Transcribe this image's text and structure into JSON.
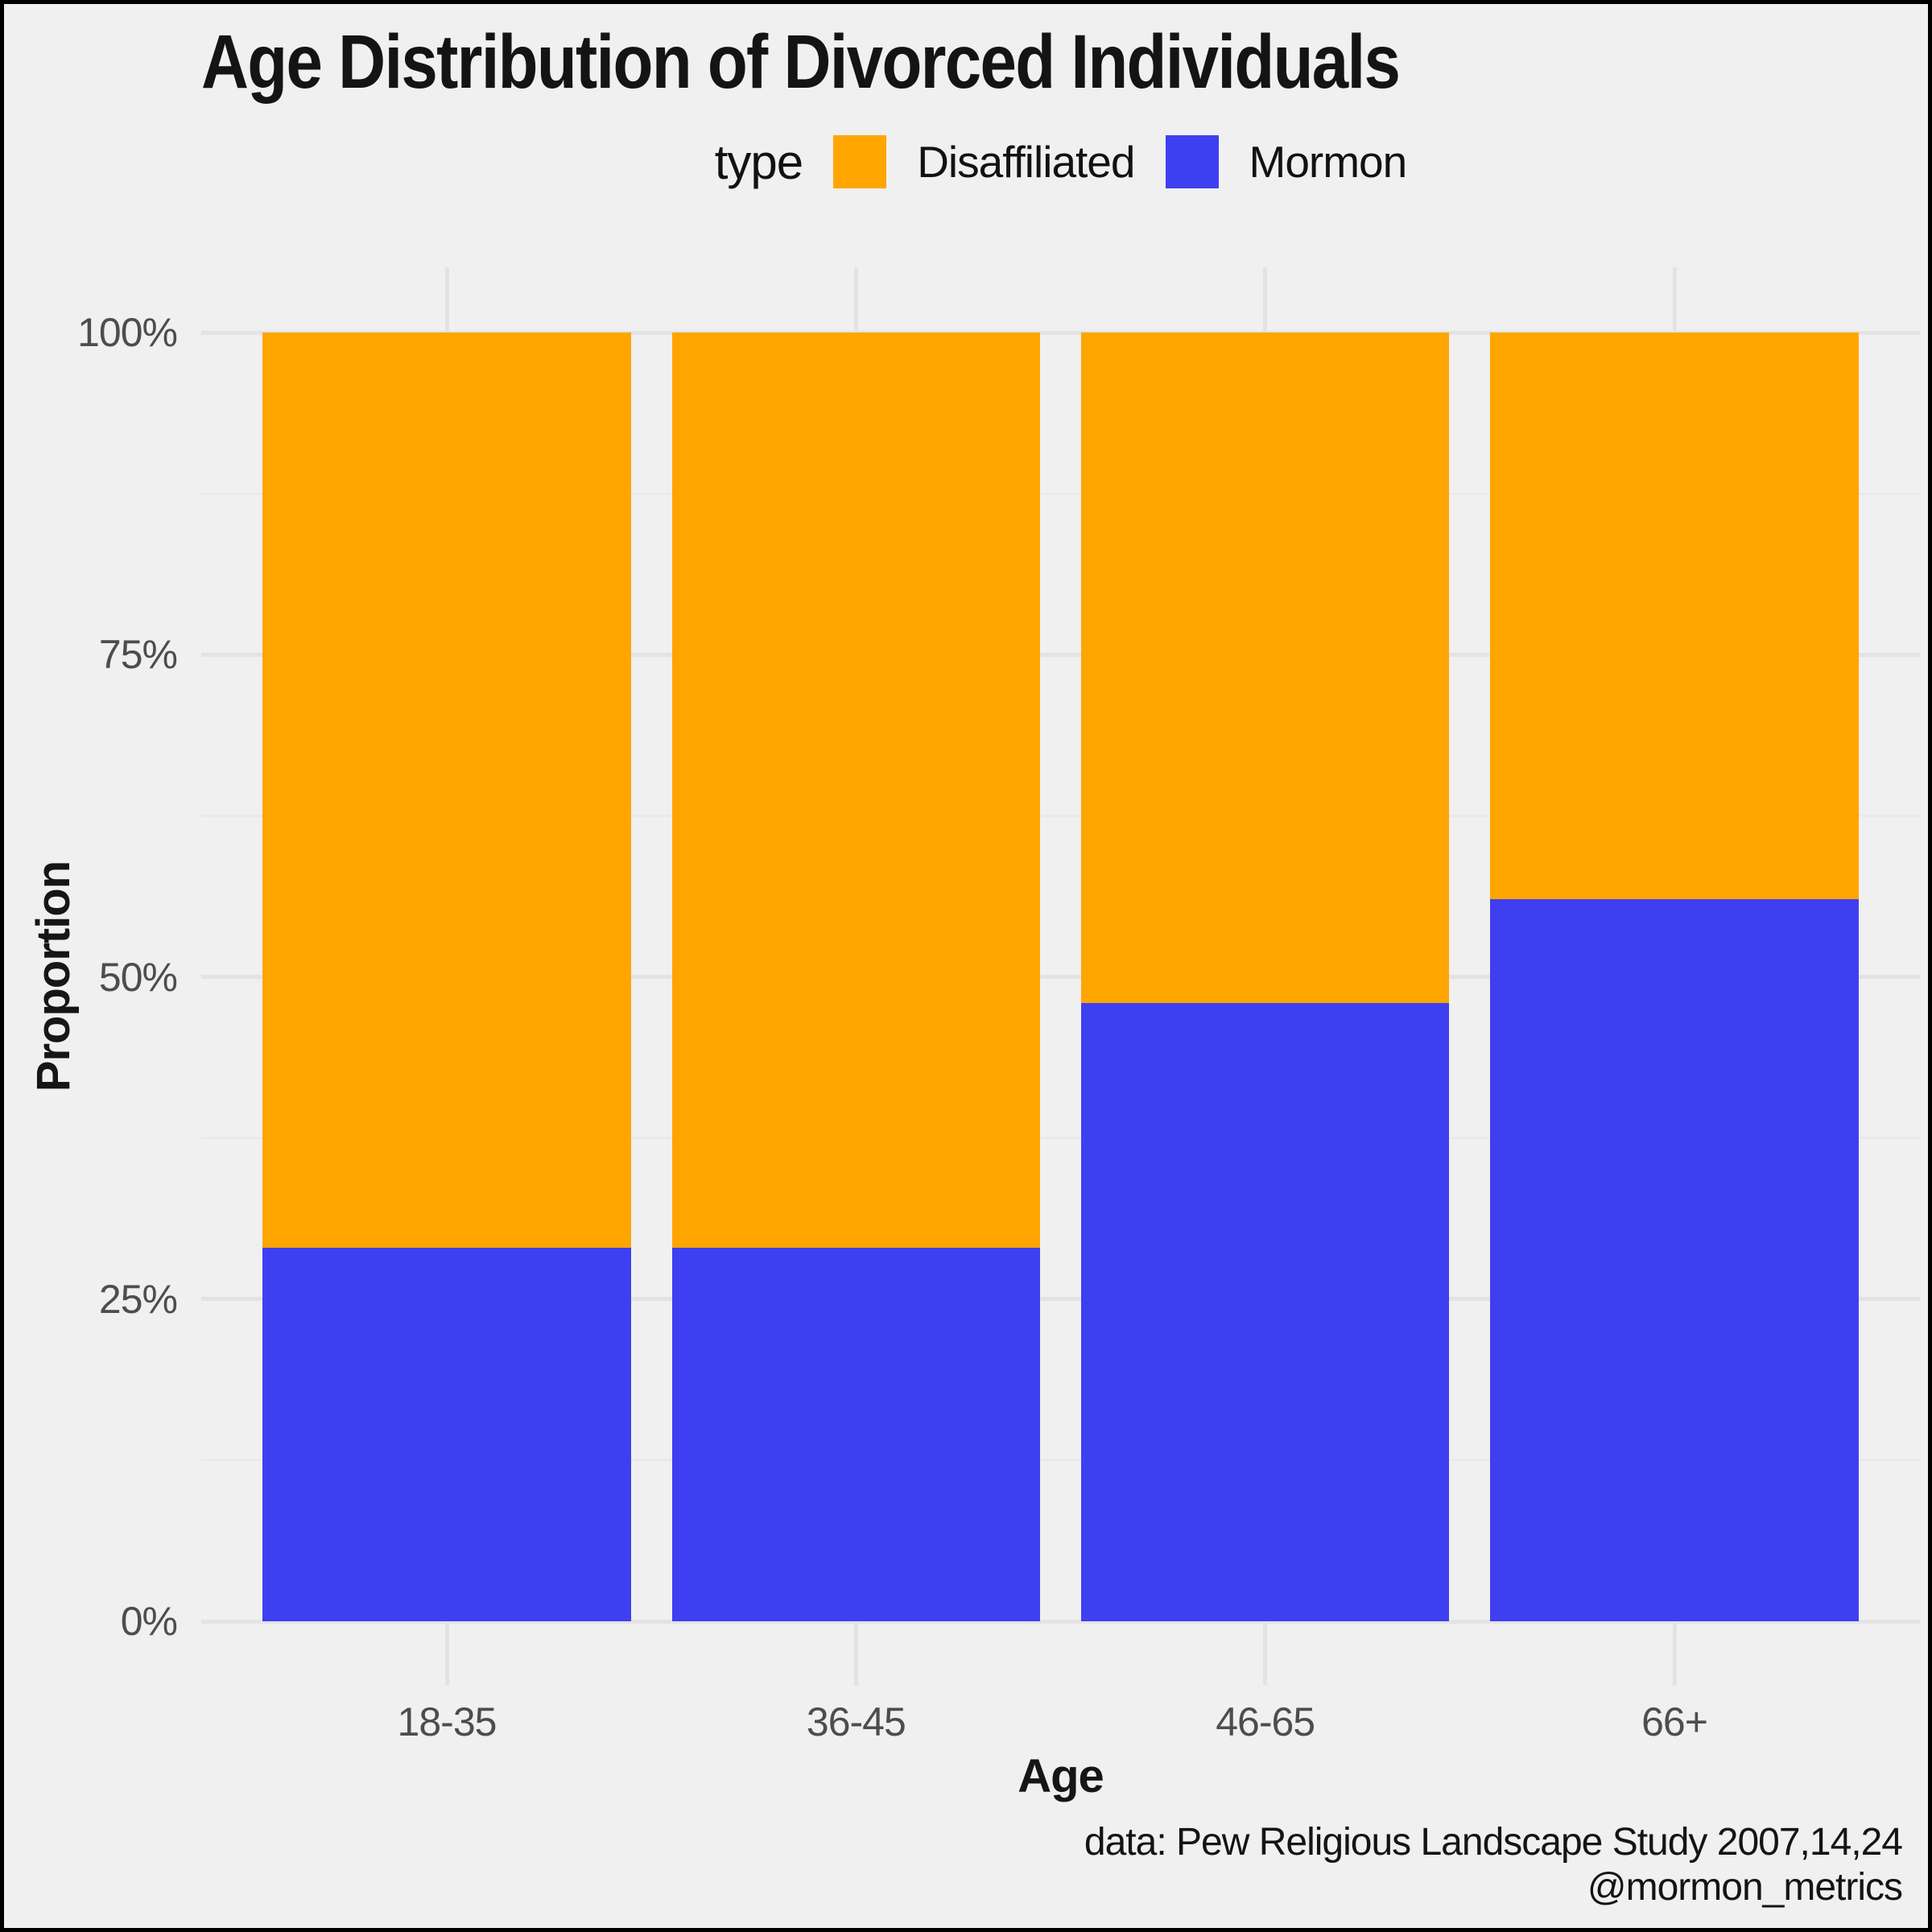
{
  "figure": {
    "background": "#f0f0f0",
    "frame_color": "#000000"
  },
  "title": "Age Distribution of Divorced Individuals",
  "legend": {
    "title": "type",
    "items": [
      {
        "label": "Disaffiliated",
        "color": "#FFA500"
      },
      {
        "label": "Mormon",
        "color": "#3F3FF2"
      }
    ]
  },
  "axes": {
    "x_title": "Age",
    "y_title": "Proportion",
    "y_tick_labels": [
      "0%",
      "25%",
      "50%",
      "75%",
      "100%"
    ],
    "x_tick_labels": [
      "18-35",
      "36-45",
      "46-65",
      "66+"
    ]
  },
  "caption": {
    "line1": "data: Pew Religious Landscape Study 2007,14,24",
    "line2": "@mormon_metrics"
  },
  "chart_data": {
    "type": "bar",
    "stacked": true,
    "normalized_to_100pct": true,
    "title": "Age Distribution of Divorced Individuals",
    "xlabel": "Age",
    "ylabel": "Proportion",
    "categories": [
      "18-35",
      "36-45",
      "46-65",
      "66+"
    ],
    "series": [
      {
        "name": "Disaffiliated",
        "color": "#FFA500",
        "values": [
          71,
          71,
          52,
          44
        ]
      },
      {
        "name": "Mormon",
        "color": "#3F3FF2",
        "values": [
          29,
          29,
          48,
          56
        ]
      }
    ],
    "ylim": [
      0,
      100
    ],
    "y_major_ticks_pct": [
      0,
      25,
      50,
      75,
      100
    ],
    "y_minor_ticks_pct": [
      12.5,
      37.5,
      62.5,
      87.5
    ],
    "grid": "on",
    "major_grid_color": "#e3e3e3",
    "minor_grid_color": "#eaeaea",
    "legend_position": "top-center"
  }
}
